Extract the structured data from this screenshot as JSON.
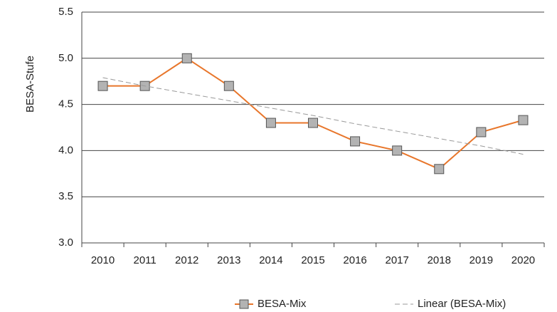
{
  "chart_data": {
    "type": "line",
    "y_label": "BESA-Stufe",
    "categories": [
      "2010",
      "2011",
      "2012",
      "2013",
      "2014",
      "2015",
      "2016",
      "2017",
      "2018",
      "2019",
      "2020"
    ],
    "series": [
      {
        "name": "BESA-Mix",
        "color": "#e8762b",
        "marker_color": "#b3b3b3",
        "values": [
          4.7,
          4.7,
          5.0,
          4.7,
          4.3,
          4.3,
          4.1,
          4.0,
          3.8,
          4.2,
          4.33
        ]
      },
      {
        "name": "Linear (BESA-Mix)",
        "color": "#999999",
        "dashed": true,
        "values": [
          4.79,
          4.7,
          4.62,
          4.54,
          4.46,
          4.38,
          4.29,
          4.21,
          4.13,
          4.05,
          3.96
        ]
      }
    ],
    "ylim": [
      3.0,
      5.5
    ],
    "yticks": [
      {
        "value": 3.0,
        "label": "3.0"
      },
      {
        "value": 3.5,
        "label": "3.5"
      },
      {
        "value": 4.0,
        "label": "4.0"
      },
      {
        "value": 4.5,
        "label": "4.5"
      },
      {
        "value": 5.0,
        "label": "5.0"
      },
      {
        "value": 5.5,
        "label": "5.5"
      }
    ],
    "grid": true,
    "legend": "bottom"
  }
}
